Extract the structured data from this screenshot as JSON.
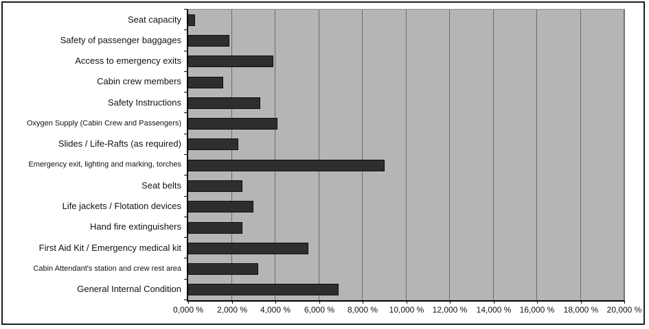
{
  "chart_data": {
    "type": "bar",
    "orientation": "horizontal",
    "title": "",
    "xlabel": "",
    "ylabel": "",
    "legend": "none",
    "grid": "vertical-major",
    "xlim": [
      0,
      20
    ],
    "x_tick_step": 2,
    "value_unit": "%",
    "categories": [
      "Seat capacity",
      "Safety of passenger baggages",
      "Access to emergency exits",
      "Cabin crew members",
      "Safety Instructions",
      "Oxygen Supply (Cabin Crew and Passengers)",
      "Slides / Life-Rafts (as required)",
      "Emergency exit, lighting and marking, torches",
      "Seat belts",
      "Life jackets / Flotation devices",
      "Hand fire extinguishers",
      "First Aid Kit / Emergency medical kit",
      "Cabin Attendant's station and crew rest area",
      "General Internal Condition"
    ],
    "values": [
      0.3,
      1.9,
      3.9,
      1.6,
      3.3,
      4.1,
      2.3,
      9.0,
      2.5,
      3.0,
      2.5,
      5.5,
      3.2,
      6.9
    ],
    "x_tick_labels": [
      "0,000 %",
      "2,000 %",
      "4,000 %",
      "6,000 %",
      "8,000 %",
      "10,000 %",
      "12,000 %",
      "14,000 %",
      "16,000 %",
      "18,000 %",
      "20,000 %"
    ],
    "colors": {
      "plot_background": "#b5b5b5",
      "bar_fill": "#2e2e2e",
      "bar_border": "#0d0d0d",
      "gridline": "#6a6a6a",
      "axis": "#000000",
      "frame_border": "#1b1b1b",
      "text": "#111111"
    }
  }
}
